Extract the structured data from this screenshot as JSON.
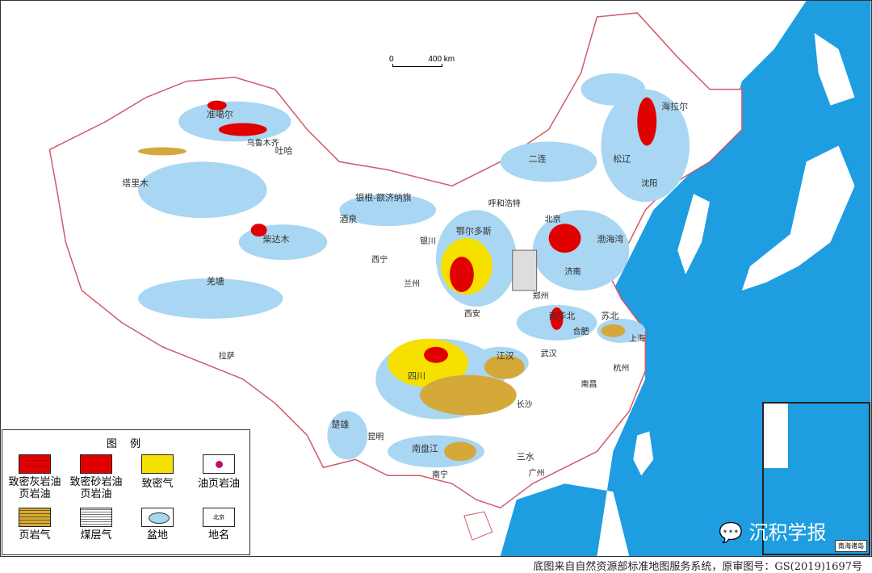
{
  "scale_bar": {
    "zero": "0",
    "distance": "400 km"
  },
  "legend": {
    "title": "图 例",
    "items": [
      {
        "label": "致密灰岩油\n页岩油",
        "color": "#e00000"
      },
      {
        "label": "致密砂岩油\n页岩油",
        "color": "#e00000"
      },
      {
        "label": "致密气",
        "color": "#f5e000"
      },
      {
        "label": "油页岩油",
        "color": "#c0106a"
      },
      {
        "label": "页岩气",
        "color": "#d4a93a"
      },
      {
        "label": "煤层气",
        "color": "#c8c8c8"
      },
      {
        "label": "盆地",
        "color": "#a9d6f2"
      },
      {
        "label": "地名",
        "sample": "北京"
      }
    ]
  },
  "cities": [
    "乌鲁木齐",
    "拉萨",
    "西宁",
    "兰州",
    "银川",
    "呼和浩特",
    "北京",
    "沈阳",
    "济南",
    "郑州",
    "西安",
    "合肥",
    "上海",
    "武汉",
    "杭州",
    "南昌",
    "长沙",
    "昆明",
    "南宁",
    "广州"
  ],
  "basins": [
    "准噶尔",
    "塔里木",
    "柴达木",
    "羌塘",
    "鄂尔多斯",
    "四川",
    "松辽",
    "渤海湾",
    "二连",
    "海拉尔",
    "南华北",
    "苏北",
    "江汉",
    "楚雄",
    "南盘江",
    "三水",
    "吐哈",
    "酒泉",
    "银根-额济纳旗"
  ],
  "inset": {
    "label": "南海诸岛"
  },
  "watermark": "沉积学报",
  "caption": "底图来自自然资源部标准地图服务系统，原审图号：GS(2019)1697号",
  "colors": {
    "sea": "#1e9de0",
    "basin": "#a9d6f2",
    "border": "#d05a6a",
    "oil": "#e00000",
    "tight_gas": "#f5e000",
    "shale_gas": "#d4a93a"
  }
}
